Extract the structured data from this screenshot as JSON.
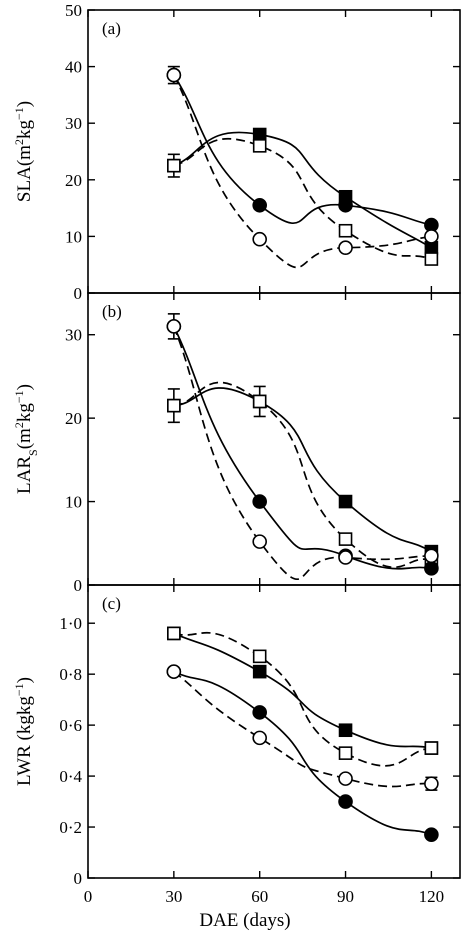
{
  "chart_data": [
    {
      "type": "line",
      "panel_label": "(a)",
      "ylabel_parts": {
        "base": "SLA",
        "open": "(m",
        "sup1": "2",
        "mid": "kg",
        "sup2": "−1",
        "close": ")"
      },
      "x": [
        30,
        60,
        90,
        120
      ],
      "xlim": [
        0,
        130
      ],
      "ylim": [
        0,
        50
      ],
      "yticks": [
        0,
        10,
        20,
        30,
        40,
        50
      ],
      "ytick_labels": [
        "0",
        "10",
        "20",
        "30",
        "40",
        "50"
      ],
      "series": [
        {
          "marker": "filled-square",
          "line": "solid",
          "values": [
            22.5,
            28,
            17,
            8
          ]
        },
        {
          "marker": "open-square",
          "line": "dashed",
          "values": [
            22.5,
            26,
            11,
            6
          ]
        },
        {
          "marker": "filled-circle",
          "line": "solid",
          "values": [
            38.5,
            15.5,
            15.5,
            12
          ]
        },
        {
          "marker": "open-circle",
          "line": "dashed",
          "values": [
            38.5,
            9.5,
            8,
            10
          ]
        }
      ],
      "error_bars": [
        {
          "x": 30,
          "y": 22.5,
          "err": 2
        },
        {
          "x": 30,
          "y": 38.5,
          "err": 1.5
        },
        {
          "x": 60,
          "y": 28,
          "err": 1
        }
      ]
    },
    {
      "type": "line",
      "panel_label": "(b)",
      "ylabel_parts": {
        "base": "LAR",
        "sub": "S",
        "open": "(m",
        "sup1": "2",
        "mid": "kg",
        "sup2": "−1",
        "close": ")"
      },
      "x": [
        30,
        60,
        90,
        120
      ],
      "xlim": [
        0,
        130
      ],
      "ylim": [
        0,
        35
      ],
      "yticks": [
        0,
        10,
        20,
        30
      ],
      "ytick_labels": [
        "0",
        "10",
        "20",
        "30"
      ],
      "series": [
        {
          "marker": "filled-square",
          "line": "solid",
          "values": [
            21.5,
            22,
            10,
            4
          ]
        },
        {
          "marker": "open-square",
          "line": "dashed",
          "values": [
            21.5,
            22,
            5.5,
            3
          ]
        },
        {
          "marker": "filled-circle",
          "line": "solid",
          "values": [
            31,
            10,
            3.5,
            2
          ]
        },
        {
          "marker": "open-circle",
          "line": "dashed",
          "values": [
            31,
            5.2,
            3.3,
            3.5
          ]
        }
      ],
      "error_bars": [
        {
          "x": 30,
          "y": 21.5,
          "err": 2
        },
        {
          "x": 30,
          "y": 31,
          "err": 1.5
        },
        {
          "x": 60,
          "y": 22,
          "err": 1.8
        }
      ]
    },
    {
      "type": "line",
      "panel_label": "(c)",
      "ylabel_parts": {
        "base": "LWR",
        "open": " (kgkg",
        "sup2": "−1",
        "close": ")"
      },
      "x": [
        30,
        60,
        90,
        120
      ],
      "xlim": [
        0,
        130
      ],
      "ylim": [
        0,
        1.15
      ],
      "yticks": [
        0,
        0.2,
        0.4,
        0.6,
        0.8,
        1.0
      ],
      "ytick_labels": [
        "0",
        "0·2",
        "0·4",
        "0·6",
        "0·8",
        "1·0"
      ],
      "series": [
        {
          "marker": "filled-square",
          "line": "solid",
          "values": [
            0.96,
            0.81,
            0.58,
            0.51
          ]
        },
        {
          "marker": "open-square",
          "line": "dashed",
          "values": [
            0.96,
            0.87,
            0.49,
            0.51
          ]
        },
        {
          "marker": "filled-circle",
          "line": "solid",
          "values": [
            0.81,
            0.65,
            0.3,
            0.17
          ]
        },
        {
          "marker": "open-circle",
          "line": "dashed",
          "values": [
            0.81,
            0.55,
            0.39,
            0.37
          ]
        }
      ],
      "error_bars": [
        {
          "x": 120,
          "y": 0.37,
          "err": 0.025
        },
        {
          "x": 120,
          "y": 0.51,
          "err": 0.02
        }
      ]
    }
  ],
  "xticks": [
    0,
    30,
    60,
    90,
    120
  ],
  "xtick_labels": [
    "0",
    "30",
    "60",
    "90",
    "120"
  ],
  "xlabel": "DAE (days)"
}
